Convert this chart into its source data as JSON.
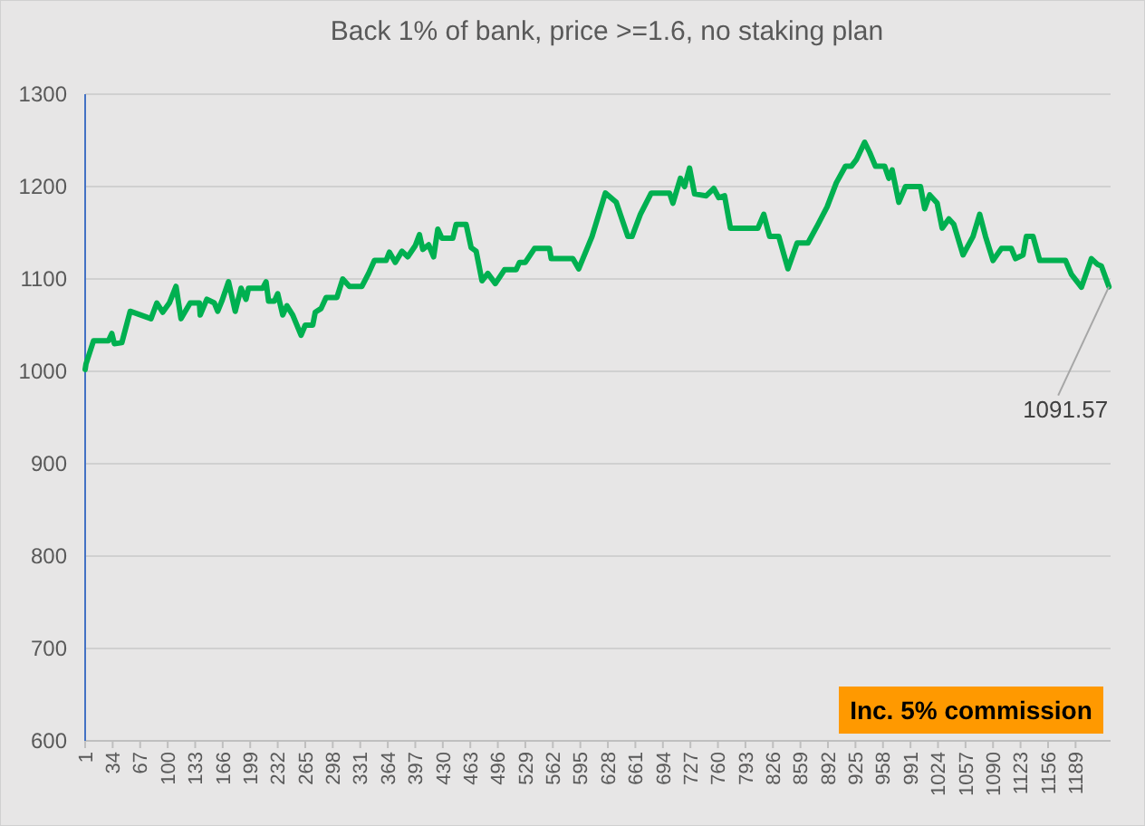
{
  "chart_data": {
    "type": "line",
    "title": "Back 1% of bank, price >=1.6, no staking plan",
    "xlim": [
      1,
      1231
    ],
    "xticks": [
      1,
      34,
      67,
      100,
      133,
      166,
      199,
      232,
      265,
      298,
      331,
      364,
      397,
      430,
      463,
      496,
      529,
      562,
      595,
      628,
      661,
      694,
      727,
      760,
      793,
      826,
      859,
      892,
      925,
      958,
      991,
      1024,
      1057,
      1090,
      1123,
      1156,
      1189
    ],
    "ylim": [
      600,
      1300
    ],
    "yticks": [
      600,
      700,
      800,
      900,
      1000,
      1100,
      1200,
      1300
    ],
    "grid": "y",
    "marker": "none",
    "line_style": "solid",
    "annotations": [
      {
        "text": "1091.57",
        "x": 1229,
        "y": 1091.57
      },
      "Inc. 5% commission"
    ],
    "series": [
      {
        "color": "#00b050",
        "x": [
          1,
          2,
          11,
          29,
          33,
          36,
          45,
          55,
          80,
          87,
          94,
          102,
          110,
          116,
          127,
          138,
          139,
          147,
          156,
          160,
          165,
          173,
          181,
          188,
          194,
          197,
          214,
          218,
          221,
          228,
          232,
          238,
          243,
          250,
          260,
          265,
          274,
          277,
          284,
          290,
          303,
          310,
          318,
          333,
          341,
          348,
          362,
          366,
          373,
          381,
          388,
          397,
          402,
          406,
          413,
          419,
          424,
          429,
          442,
          446,
          458,
          464,
          470,
          477,
          484,
          493,
          504,
          518,
          522,
          529,
          540,
          558,
          560,
          586,
          593,
          609,
          625,
          638,
          652,
          657,
          667,
          680,
          702,
          706,
          715,
          720,
          726,
          732,
          746,
          755,
          761,
          768,
          775,
          808,
          815,
          822,
          833,
          844,
          855,
          868,
          880,
          891,
          902,
          913,
          920,
          926,
          936,
          942,
          949,
          960,
          965,
          969,
          977,
          985,
          1003,
          1008,
          1014,
          1023,
          1029,
          1037,
          1043,
          1054,
          1066,
          1074,
          1081,
          1090,
          1100,
          1112,
          1117,
          1126,
          1130,
          1138,
          1146,
          1177,
          1184,
          1196,
          1208,
          1215,
          1220,
          1229
        ],
        "values": [
          1002,
          1008,
          1033,
          1033,
          1041,
          1030,
          1031,
          1065,
          1057,
          1074,
          1064,
          1074,
          1092,
          1057,
          1074,
          1074,
          1061,
          1078,
          1074,
          1065,
          1076,
          1097,
          1065,
          1090,
          1078,
          1090,
          1090,
          1097,
          1076,
          1076,
          1084,
          1061,
          1071,
          1061,
          1039,
          1050,
          1050,
          1064,
          1068,
          1080,
          1080,
          1100,
          1092,
          1092,
          1106,
          1120,
          1120,
          1129,
          1118,
          1130,
          1124,
          1136,
          1148,
          1132,
          1137,
          1124,
          1154,
          1144,
          1144,
          1159,
          1159,
          1134,
          1130,
          1098,
          1106,
          1095,
          1110,
          1110,
          1118,
          1118,
          1133,
          1133,
          1122,
          1122,
          1111,
          1146,
          1193,
          1183,
          1146,
          1146,
          1170,
          1193,
          1193,
          1182,
          1209,
          1200,
          1220,
          1192,
          1190,
          1198,
          1188,
          1190,
          1155,
          1155,
          1170,
          1146,
          1146,
          1111,
          1139,
          1139,
          1159,
          1178,
          1204,
          1222,
          1222,
          1229,
          1248,
          1237,
          1222,
          1222,
          1209,
          1218,
          1183,
          1200,
          1200,
          1176,
          1191,
          1182,
          1155,
          1165,
          1159,
          1126,
          1146,
          1170,
          1146,
          1120,
          1133,
          1133,
          1122,
          1126,
          1146,
          1146,
          1120,
          1120,
          1105,
          1091,
          1122,
          1116,
          1114,
          1091.57
        ]
      }
    ]
  }
}
